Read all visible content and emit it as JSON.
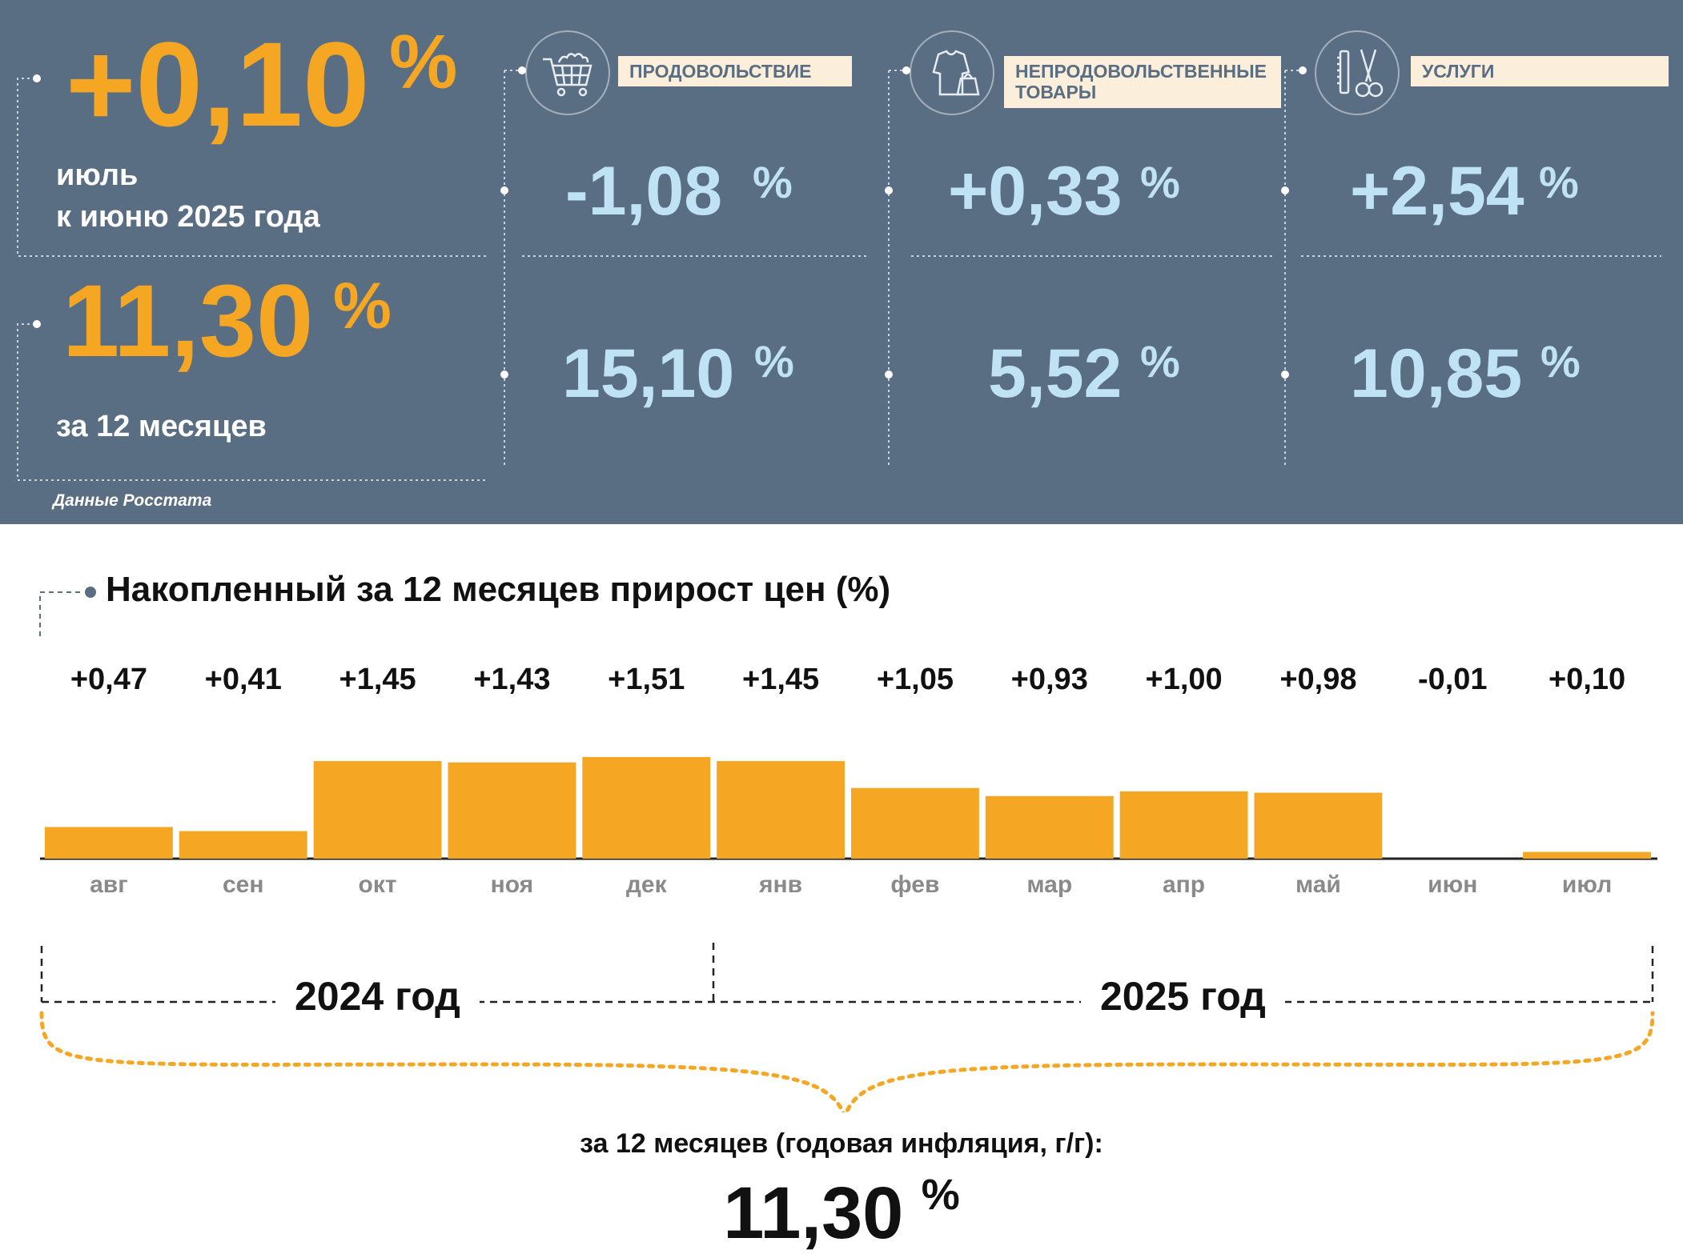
{
  "header": {
    "monthly": {
      "value": "+0,10",
      "unit": "%",
      "line1": "июль",
      "line2": "к июню 2025 года"
    },
    "annual": {
      "value": "11,30",
      "unit": "%",
      "label": "за 12 месяцев"
    },
    "source": "Данные Росстата",
    "categories": [
      {
        "label": "ПРОДОВОЛЬСТВИЕ",
        "icon": "shopping-cart-icon",
        "monthly": "-1,08",
        "annual": "15,10",
        "unit": "%"
      },
      {
        "label": "НЕПРОДОВОЛЬСТВЕННЫЕ ТОВАРЫ",
        "icon": "clothing-bag-icon",
        "monthly": "+0,33",
        "annual": "5,52",
        "unit": "%"
      },
      {
        "label": "УСЛУГИ",
        "icon": "comb-scissors-icon",
        "monthly": "+2,54",
        "annual": "10,85",
        "unit": "%"
      }
    ]
  },
  "colors": {
    "panel": "#5a6e83",
    "accent": "#f5a623",
    "value_blue": "#bfe3f4",
    "label_bg": "#fbeedb"
  },
  "chart_data": {
    "type": "bar",
    "title": "Накопленный за 12 месяцев прирост цен (%)",
    "categories": [
      "авг",
      "сен",
      "окт",
      "ноя",
      "дек",
      "янв",
      "фев",
      "мар",
      "апр",
      "май",
      "июн",
      "июл"
    ],
    "values": [
      0.47,
      0.41,
      1.45,
      1.43,
      1.51,
      1.45,
      1.05,
      0.93,
      1.0,
      0.98,
      -0.01,
      0.1
    ],
    "value_labels": [
      "+0,47",
      "+0,41",
      "+1,45",
      "+1,43",
      "+1,51",
      "+1,45",
      "+1,05",
      "+0,93",
      "+1,00",
      "+0,98",
      "-0,01",
      "+0,10"
    ],
    "bar_color": "#f5a623",
    "ylim": [
      0,
      1.51
    ],
    "grid": false,
    "legend": "none",
    "years": [
      "2024 год",
      "2025 год"
    ],
    "annual_label": "за 12 месяцев (годовая инфляция, г/г):",
    "annual_value": "11,30",
    "annual_unit": "%"
  }
}
